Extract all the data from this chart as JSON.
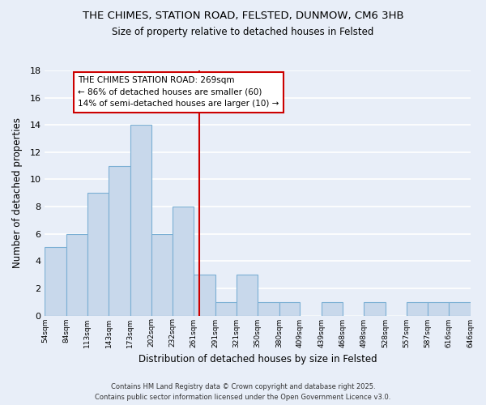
{
  "title": "THE CHIMES, STATION ROAD, FELSTED, DUNMOW, CM6 3HB",
  "subtitle": "Size of property relative to detached houses in Felsted",
  "xlabel": "Distribution of detached houses by size in Felsted",
  "ylabel": "Number of detached properties",
  "bins": [
    54,
    84,
    113,
    143,
    173,
    202,
    232,
    261,
    291,
    321,
    350,
    380,
    409,
    439,
    468,
    498,
    528,
    557,
    587,
    616,
    646
  ],
  "counts": [
    5,
    6,
    9,
    11,
    14,
    6,
    8,
    3,
    1,
    3,
    1,
    1,
    0,
    1,
    0,
    1,
    0,
    1,
    1,
    1
  ],
  "bar_color": "#c8d8eb",
  "bar_edge_color": "#7bafd4",
  "vline_x": 269,
  "vline_color": "#cc0000",
  "annotation_title": "THE CHIMES STATION ROAD: 269sqm",
  "annotation_line1": "← 86% of detached houses are smaller (60)",
  "annotation_line2": "14% of semi-detached houses are larger (10) →",
  "annotation_box_facecolor": "#ffffff",
  "annotation_box_edgecolor": "#cc0000",
  "ylim": [
    0,
    18
  ],
  "yticks": [
    0,
    2,
    4,
    6,
    8,
    10,
    12,
    14,
    16,
    18
  ],
  "background_color": "#e8eef8",
  "grid_color": "#ffffff",
  "footer_line1": "Contains HM Land Registry data © Crown copyright and database right 2025.",
  "footer_line2": "Contains public sector information licensed under the Open Government Licence v3.0."
}
